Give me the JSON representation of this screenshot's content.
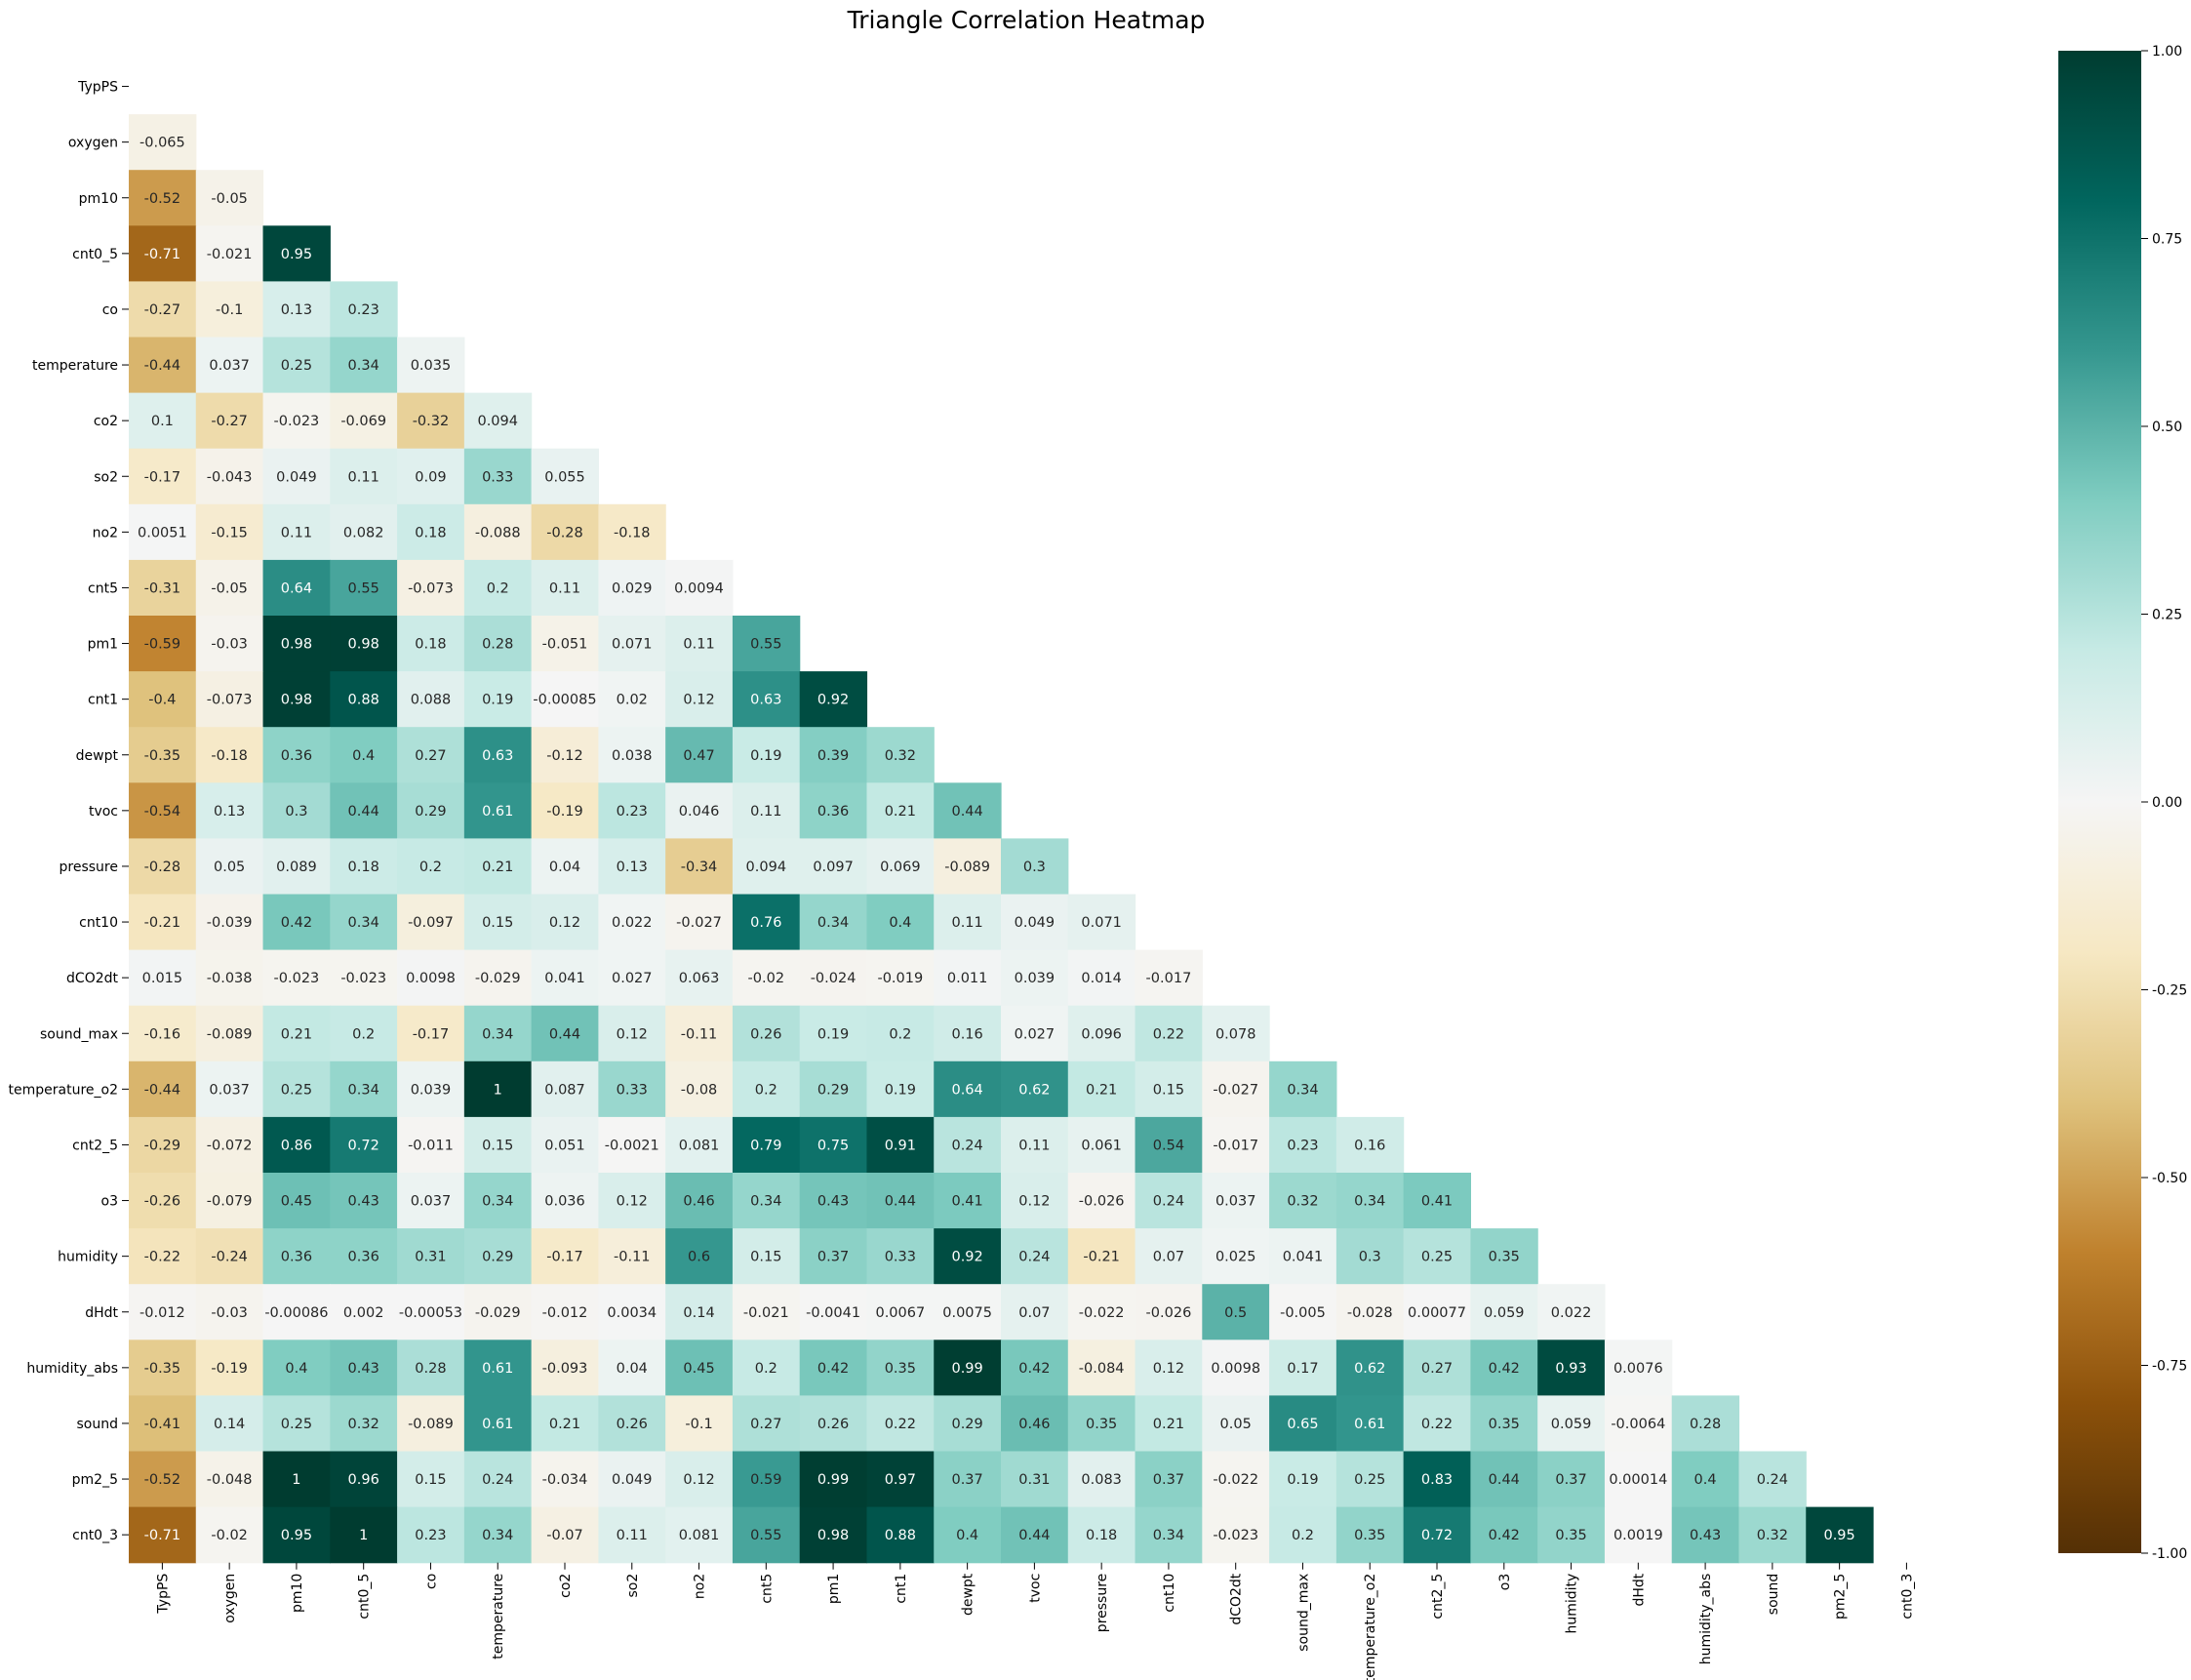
{
  "chart_data": {
    "type": "heatmap",
    "title": "Triangle Correlation Heatmap",
    "variables": [
      "TypPS",
      "oxygen",
      "pm10",
      "cnt0_5",
      "co",
      "temperature",
      "co2",
      "so2",
      "no2",
      "cnt5",
      "pm1",
      "cnt1",
      "dewpt",
      "tvoc",
      "pressure",
      "cnt10",
      "dCO2dt",
      "sound_max",
      "temperature_o2",
      "cnt2_5",
      "o3",
      "humidity",
      "dHdt",
      "humidity_abs",
      "sound",
      "pm2_5",
      "cnt0_3"
    ],
    "mask": "upper triangle including diagonal",
    "colormap": "BrBG",
    "vmin": -1.0,
    "vmax": 1.0,
    "colorbar_ticks": [
      "-1.00",
      "-0.75",
      "-0.50",
      "-0.25",
      "0.00",
      "0.25",
      "0.50",
      "0.75",
      "1.00"
    ],
    "rows": [
      [],
      [
        "-0.065"
      ],
      [
        "-0.52",
        "-0.05"
      ],
      [
        "-0.71",
        "-0.021",
        "0.95"
      ],
      [
        "-0.27",
        "-0.1",
        "0.13",
        "0.23"
      ],
      [
        "-0.44",
        "0.037",
        "0.25",
        "0.34",
        "0.035"
      ],
      [
        "0.1",
        "-0.27",
        "-0.023",
        "-0.069",
        "-0.32",
        "0.094"
      ],
      [
        "-0.17",
        "-0.043",
        "0.049",
        "0.11",
        "0.09",
        "0.33",
        "0.055"
      ],
      [
        "0.0051",
        "-0.15",
        "0.11",
        "0.082",
        "0.18",
        "-0.088",
        "-0.28",
        "-0.18"
      ],
      [
        "-0.31",
        "-0.05",
        "0.64",
        "0.55",
        "-0.073",
        "0.2",
        "0.11",
        "0.029",
        "0.0094"
      ],
      [
        "-0.59",
        "-0.03",
        "0.98",
        "0.98",
        "0.18",
        "0.28",
        "-0.051",
        "0.071",
        "0.11",
        "0.55"
      ],
      [
        "-0.4",
        "-0.073",
        "0.98",
        "0.88",
        "0.088",
        "0.19",
        "-0.00085",
        "0.02",
        "0.12",
        "0.63",
        "0.92"
      ],
      [
        "-0.35",
        "-0.18",
        "0.36",
        "0.4",
        "0.27",
        "0.63",
        "-0.12",
        "0.038",
        "0.47",
        "0.19",
        "0.39",
        "0.32"
      ],
      [
        "-0.54",
        "0.13",
        "0.3",
        "0.44",
        "0.29",
        "0.61",
        "-0.19",
        "0.23",
        "0.046",
        "0.11",
        "0.36",
        "0.21",
        "0.44"
      ],
      [
        "-0.28",
        "0.05",
        "0.089",
        "0.18",
        "0.2",
        "0.21",
        "0.04",
        "0.13",
        "-0.34",
        "0.094",
        "0.097",
        "0.069",
        "-0.089",
        "0.3"
      ],
      [
        "-0.21",
        "-0.039",
        "0.42",
        "0.34",
        "-0.097",
        "0.15",
        "0.12",
        "0.022",
        "-0.027",
        "0.76",
        "0.34",
        "0.4",
        "0.11",
        "0.049",
        "0.071"
      ],
      [
        "0.015",
        "-0.038",
        "-0.023",
        "-0.023",
        "0.0098",
        "-0.029",
        "0.041",
        "0.027",
        "0.063",
        "-0.02",
        "-0.024",
        "-0.019",
        "0.011",
        "0.039",
        "0.014",
        "-0.017"
      ],
      [
        "-0.16",
        "-0.089",
        "0.21",
        "0.2",
        "-0.17",
        "0.34",
        "0.44",
        "0.12",
        "-0.11",
        "0.26",
        "0.19",
        "0.2",
        "0.16",
        "0.027",
        "0.096",
        "0.22",
        "0.078"
      ],
      [
        "-0.44",
        "0.037",
        "0.25",
        "0.34",
        "0.039",
        "1",
        "0.087",
        "0.33",
        "-0.08",
        "0.2",
        "0.29",
        "0.19",
        "0.64",
        "0.62",
        "0.21",
        "0.15",
        "-0.027",
        "0.34"
      ],
      [
        "-0.29",
        "-0.072",
        "0.86",
        "0.72",
        "-0.011",
        "0.15",
        "0.051",
        "-0.0021",
        "0.081",
        "0.79",
        "0.75",
        "0.91",
        "0.24",
        "0.11",
        "0.061",
        "0.54",
        "-0.017",
        "0.23",
        "0.16"
      ],
      [
        "-0.26",
        "-0.079",
        "0.45",
        "0.43",
        "0.037",
        "0.34",
        "0.036",
        "0.12",
        "0.46",
        "0.34",
        "0.43",
        "0.44",
        "0.41",
        "0.12",
        "-0.026",
        "0.24",
        "0.037",
        "0.32",
        "0.34",
        "0.41"
      ],
      [
        "-0.22",
        "-0.24",
        "0.36",
        "0.36",
        "0.31",
        "0.29",
        "-0.17",
        "-0.11",
        "0.6",
        "0.15",
        "0.37",
        "0.33",
        "0.92",
        "0.24",
        "-0.21",
        "0.07",
        "0.025",
        "0.041",
        "0.3",
        "0.25",
        "0.35"
      ],
      [
        "-0.012",
        "-0.03",
        "-0.00086",
        "0.002",
        "-0.00053",
        "-0.029",
        "-0.012",
        "0.0034",
        "0.14",
        "-0.021",
        "-0.0041",
        "0.0067",
        "0.0075",
        "0.07",
        "-0.022",
        "-0.026",
        "0.5",
        "-0.005",
        "-0.028",
        "0.00077",
        "0.059",
        "0.022"
      ],
      [
        "-0.35",
        "-0.19",
        "0.4",
        "0.43",
        "0.28",
        "0.61",
        "-0.093",
        "0.04",
        "0.45",
        "0.2",
        "0.42",
        "0.35",
        "0.99",
        "0.42",
        "-0.084",
        "0.12",
        "0.0098",
        "0.17",
        "0.62",
        "0.27",
        "0.42",
        "0.93",
        "0.0076"
      ],
      [
        "-0.41",
        "0.14",
        "0.25",
        "0.32",
        "-0.089",
        "0.61",
        "0.21",
        "0.26",
        "-0.1",
        "0.27",
        "0.26",
        "0.22",
        "0.29",
        "0.46",
        "0.35",
        "0.21",
        "0.05",
        "0.65",
        "0.61",
        "0.22",
        "0.35",
        "0.059",
        "-0.0064",
        "0.28"
      ],
      [
        "-0.52",
        "-0.048",
        "1",
        "0.96",
        "0.15",
        "0.24",
        "-0.034",
        "0.049",
        "0.12",
        "0.59",
        "0.99",
        "0.97",
        "0.37",
        "0.31",
        "0.083",
        "0.37",
        "-0.022",
        "0.19",
        "0.25",
        "0.83",
        "0.44",
        "0.37",
        "0.00014",
        "0.4",
        "0.24"
      ],
      [
        "-0.71",
        "-0.02",
        "0.95",
        "1",
        "0.23",
        "0.34",
        "-0.07",
        "0.11",
        "0.081",
        "0.55",
        "0.98",
        "0.88",
        "0.4",
        "0.44",
        "0.18",
        "0.34",
        "-0.023",
        "0.2",
        "0.35",
        "0.72",
        "0.42",
        "0.35",
        "0.0019",
        "0.43",
        "0.32",
        "0.95"
      ]
    ]
  }
}
